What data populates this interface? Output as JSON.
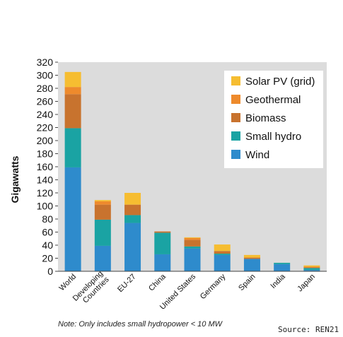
{
  "chart_data": {
    "type": "bar",
    "stacked": true,
    "categories": [
      "World",
      "Developing Countries",
      "EU-27",
      "China",
      "United States",
      "Germany",
      "Spain",
      "India",
      "Japan"
    ],
    "category_lines": [
      [
        "World"
      ],
      [
        "Developing",
        "Countries"
      ],
      [
        "EU-27"
      ],
      [
        "China"
      ],
      [
        "United States"
      ],
      [
        "Germany"
      ],
      [
        "Spain"
      ],
      [
        "India"
      ],
      [
        "Japan"
      ]
    ],
    "series": [
      {
        "name": "Wind",
        "color": "#2e8bcc",
        "values": [
          159,
          39,
          74,
          26,
          35,
          25,
          19,
          11,
          2
        ]
      },
      {
        "name": "Small hydro",
        "color": "#1aa3a3",
        "values": [
          60,
          40,
          12,
          33,
          3,
          2,
          0,
          2,
          3
        ]
      },
      {
        "name": "Biomass",
        "color": "#c8732e",
        "values": [
          52,
          23,
          16,
          2,
          10,
          4,
          2,
          0,
          1
        ]
      },
      {
        "name": "Geothermal",
        "color": "#ee8a2c",
        "values": [
          11,
          5,
          0,
          0,
          3,
          0,
          0,
          0,
          1
        ]
      },
      {
        "name": "Solar PV (grid)",
        "color": "#f6bd31",
        "values": [
          23,
          2,
          18,
          0,
          1,
          10,
          4,
          0,
          2
        ]
      }
    ],
    "legend_order": [
      "Solar PV (grid)",
      "Geothermal",
      "Biomass",
      "Small hydro",
      "Wind"
    ],
    "legend_position": "top-right",
    "ylabel": "Gigawatts",
    "ylim": [
      0,
      320
    ],
    "yticks": [
      0,
      20,
      40,
      60,
      80,
      100,
      120,
      140,
      160,
      180,
      200,
      220,
      240,
      260,
      280,
      300,
      320
    ],
    "grid": false
  },
  "note": "Note: Only includes small hydropower < 10 MW",
  "source": "Source: REN21"
}
